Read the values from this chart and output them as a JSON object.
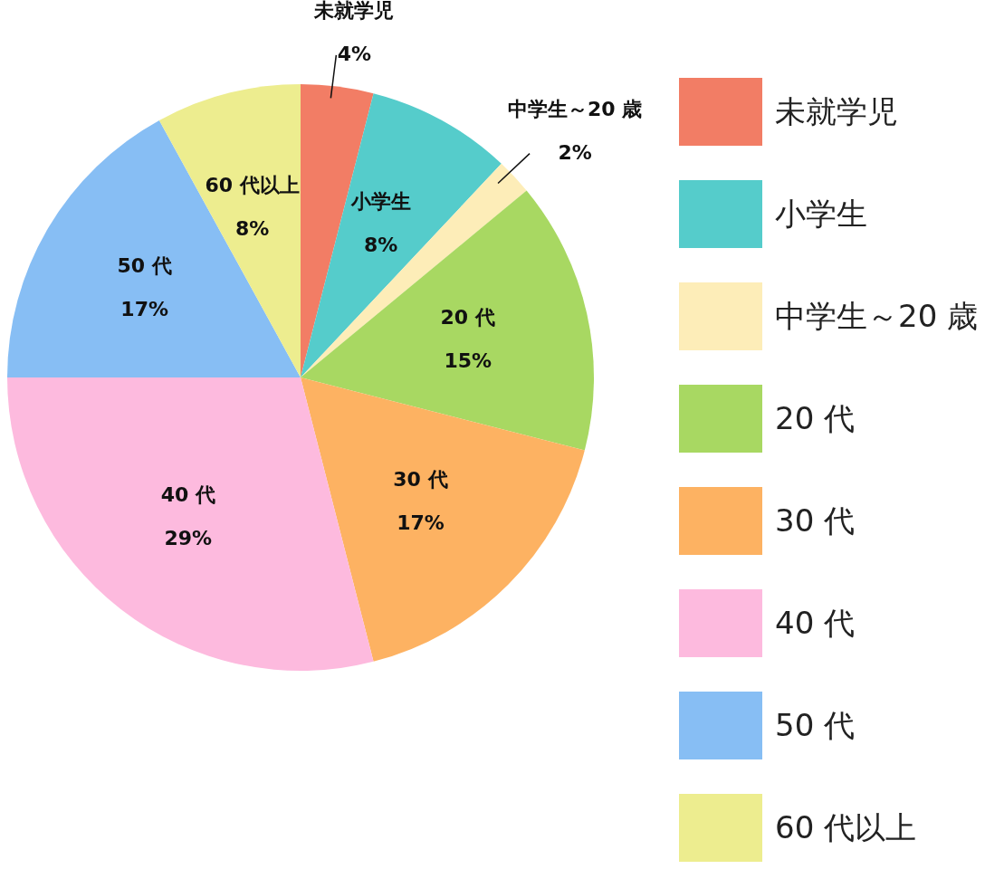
{
  "chart_data": {
    "type": "pie",
    "categories": [
      "未就学児",
      "小学生",
      "中学生～20 歳",
      "20 代",
      "30 代",
      "40 代",
      "50 代",
      "60 代以上"
    ],
    "values": [
      4,
      8,
      2,
      15,
      17,
      29,
      17,
      8
    ],
    "value_labels": [
      "4%",
      "8%",
      "2%",
      "15%",
      "17%",
      "29%",
      "17%",
      "8%"
    ],
    "colors": [
      "#f27d65",
      "#55cccb",
      "#fdedb8",
      "#a8d862",
      "#fdb262",
      "#fdbade",
      "#87bef4",
      "#eded8f"
    ],
    "legend": "right"
  }
}
